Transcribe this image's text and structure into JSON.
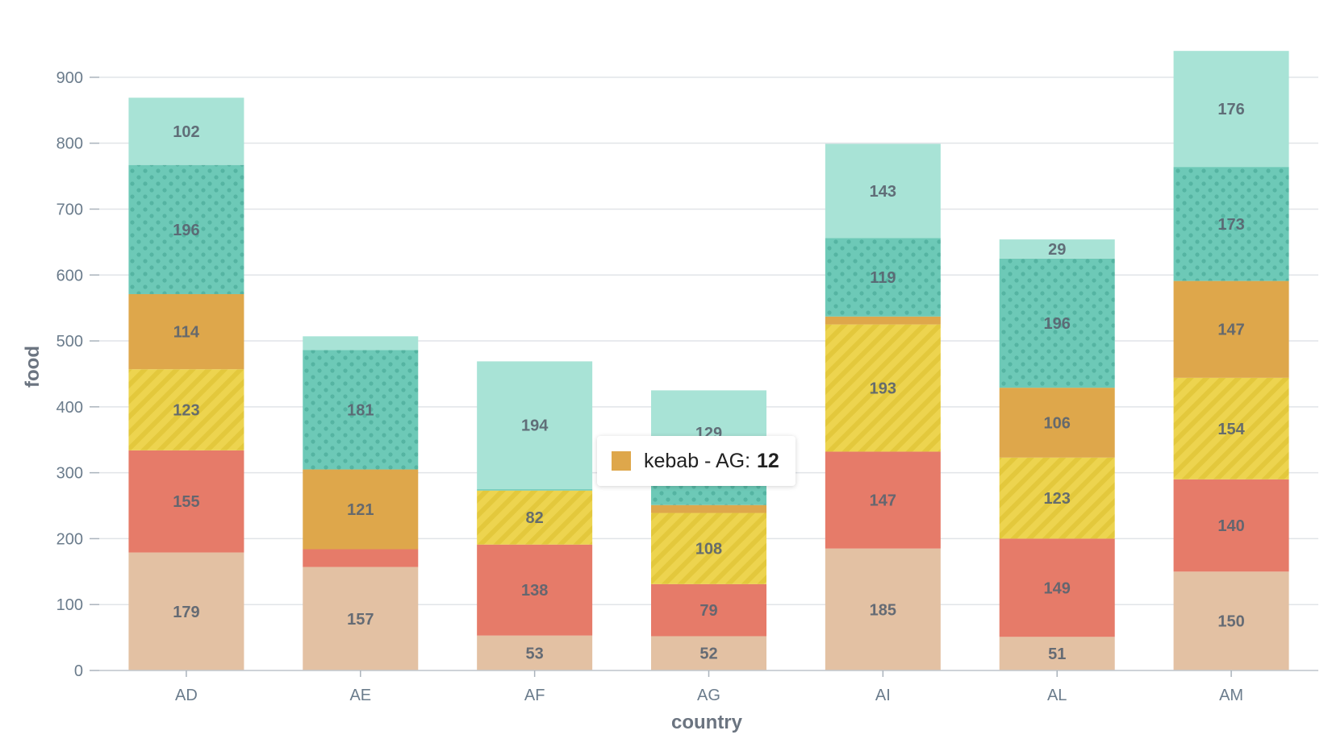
{
  "chart_data": {
    "type": "bar",
    "stacked": true,
    "xlabel": "country",
    "ylabel": "food",
    "ylim": [
      0,
      950
    ],
    "yticks": [
      0,
      100,
      200,
      300,
      400,
      500,
      600,
      700,
      800,
      900
    ],
    "grid": true,
    "categories": [
      "AD",
      "AE",
      "AF",
      "AG",
      "AI",
      "AL",
      "AM"
    ],
    "series": [
      {
        "key": "s1",
        "color": "#e3c1a3",
        "pattern": "none",
        "values": [
          179,
          157,
          53,
          52,
          185,
          51,
          150
        ],
        "labels": [
          "179",
          "157",
          "53",
          "52",
          "185",
          "51",
          "150"
        ]
      },
      {
        "key": "s2",
        "color": "#e67b69",
        "pattern": "none",
        "values": [
          155,
          27,
          138,
          79,
          147,
          149,
          140
        ],
        "labels": [
          "155",
          "",
          "138",
          "79",
          "147",
          "149",
          "140"
        ]
      },
      {
        "key": "s3",
        "color": "#edd44f",
        "pattern": "stripes",
        "values": [
          123,
          0,
          82,
          108,
          193,
          123,
          154
        ],
        "labels": [
          "123",
          "",
          "82",
          "108",
          "193",
          "123",
          "154"
        ]
      },
      {
        "name": "kebab",
        "key": "s4",
        "color": "#dea74b",
        "pattern": "none",
        "values": [
          114,
          121,
          0,
          12,
          12,
          106,
          147
        ],
        "labels": [
          "114",
          "121",
          "",
          "",
          "",
          "106",
          "147"
        ]
      },
      {
        "key": "s5",
        "color": "#6dc9b7",
        "pattern": "dots",
        "values": [
          196,
          181,
          2,
          45,
          119,
          196,
          173
        ],
        "labels": [
          "196",
          "181",
          "",
          "",
          "119",
          "196",
          "173"
        ]
      },
      {
        "key": "s6",
        "color": "#a8e3d6",
        "pattern": "none",
        "values": [
          102,
          21,
          194,
          129,
          143,
          29,
          176
        ],
        "labels": [
          "102",
          "",
          "194",
          "129",
          "143",
          "29",
          "176"
        ]
      }
    ]
  },
  "tooltip": {
    "label": "kebab - AG:",
    "value": "12",
    "color": "#dea74b"
  }
}
